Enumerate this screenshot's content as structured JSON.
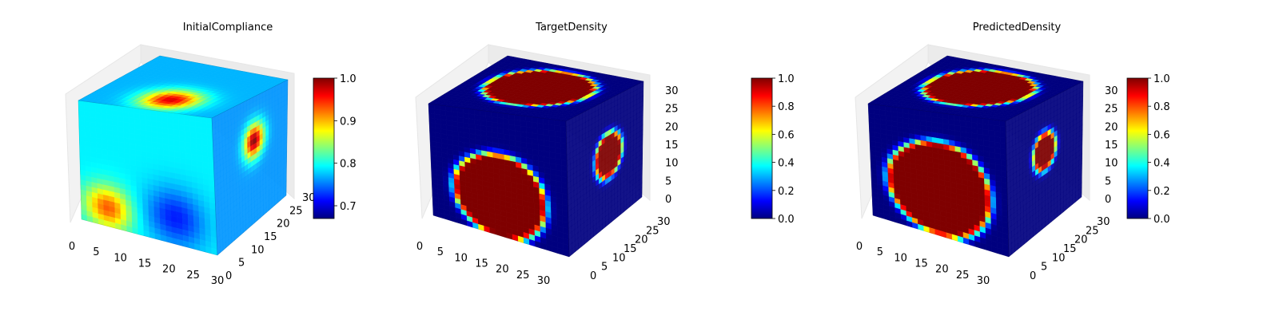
{
  "colors": {
    "jet": [
      "#00007f",
      "#0000ff",
      "#007fff",
      "#00ffff",
      "#7fff7f",
      "#ffff00",
      "#ff7f00",
      "#ff0000",
      "#7f0000"
    ],
    "pane": "#f2f2f2",
    "grid": "#d9d9d9"
  },
  "chart_data": [
    {
      "type": "voxel",
      "title": "InitialCompliance",
      "colorbar": {
        "min": 0.67,
        "max": 1.0,
        "ticks": [
          "0.7",
          "0.8",
          "0.9",
          "1.0"
        ],
        "tick_values": [
          0.7,
          0.8,
          0.9,
          1.0
        ]
      },
      "axes": {
        "x_ticks": [
          "0",
          "5",
          "10",
          "15",
          "20",
          "25",
          "30"
        ],
        "y_ticks": [
          "0",
          "5",
          "10",
          "15",
          "20",
          "25",
          "30"
        ],
        "z_ticks": []
      },
      "grid_size": [
        32,
        32,
        32
      ],
      "face_colors": {
        "front": "#7fdc9a",
        "top": "#4fc6e4",
        "side": "#43b6c4"
      },
      "blobs": [
        {
          "face": "front",
          "u": 0.2,
          "v": 0.85,
          "r": 0.12,
          "value": 0.93
        },
        {
          "face": "top",
          "u": 0.25,
          "v": 0.55,
          "r": 0.14,
          "value": 0.97
        },
        {
          "face": "side",
          "u": 0.55,
          "v": 0.35,
          "r": 0.09,
          "value": 1.0
        },
        {
          "face": "front",
          "u": 0.7,
          "v": 0.8,
          "r": 0.15,
          "value": 0.72
        }
      ]
    },
    {
      "type": "voxel",
      "title": "TargetDensity",
      "colorbar": {
        "min": 0.0,
        "max": 1.0,
        "ticks": [
          "0.0",
          "0.2",
          "0.4",
          "0.6",
          "0.8",
          "1.0"
        ],
        "tick_values": [
          0.0,
          0.2,
          0.4,
          0.6,
          0.8,
          1.0
        ]
      },
      "axes": {
        "x_ticks": [
          "0",
          "5",
          "10",
          "15",
          "20",
          "25",
          "30"
        ],
        "y_ticks": [
          "0",
          "5",
          "10",
          "15",
          "20",
          "25",
          "30"
        ],
        "z_ticks": [
          "0",
          "5",
          "10",
          "15",
          "20",
          "25",
          "30"
        ]
      },
      "grid_size": [
        32,
        32,
        32
      ],
      "face_colors": {
        "front": "#00007f",
        "top": "#00007f",
        "side": "#00007f"
      },
      "blobs": [
        {
          "face": "front",
          "u": 0.5,
          "v": 0.68,
          "r": 0.3,
          "value": 1.0
        },
        {
          "face": "top",
          "u": 0.55,
          "v": 0.5,
          "r": 0.32,
          "value": 1.0
        },
        {
          "face": "side",
          "u": 0.55,
          "v": 0.45,
          "r": 0.14,
          "value": 1.0
        }
      ]
    },
    {
      "type": "voxel",
      "title": "PredictedDensity",
      "colorbar": {
        "min": 0.0,
        "max": 1.0,
        "ticks": [
          "0.0",
          "0.2",
          "0.4",
          "0.6",
          "0.8",
          "1.0"
        ],
        "tick_values": [
          0.0,
          0.2,
          0.4,
          0.6,
          0.8,
          1.0
        ]
      },
      "axes": {
        "x_ticks": [
          "0",
          "5",
          "10",
          "15",
          "20",
          "25",
          "30"
        ],
        "y_ticks": [
          "0",
          "5",
          "10",
          "15",
          "20",
          "25",
          "30"
        ],
        "z_ticks": [
          "0",
          "5",
          "10",
          "15",
          "20",
          "25",
          "30"
        ]
      },
      "grid_size": [
        32,
        32,
        32
      ],
      "face_colors": {
        "front": "#00007f",
        "top": "#00007f",
        "side": "#00007f"
      },
      "blobs": [
        {
          "face": "front",
          "u": 0.5,
          "v": 0.62,
          "r": 0.34,
          "value": 1.0
        },
        {
          "face": "top",
          "u": 0.55,
          "v": 0.5,
          "r": 0.32,
          "value": 1.0
        },
        {
          "face": "side",
          "u": 0.5,
          "v": 0.4,
          "r": 0.11,
          "value": 1.0
        }
      ]
    }
  ]
}
